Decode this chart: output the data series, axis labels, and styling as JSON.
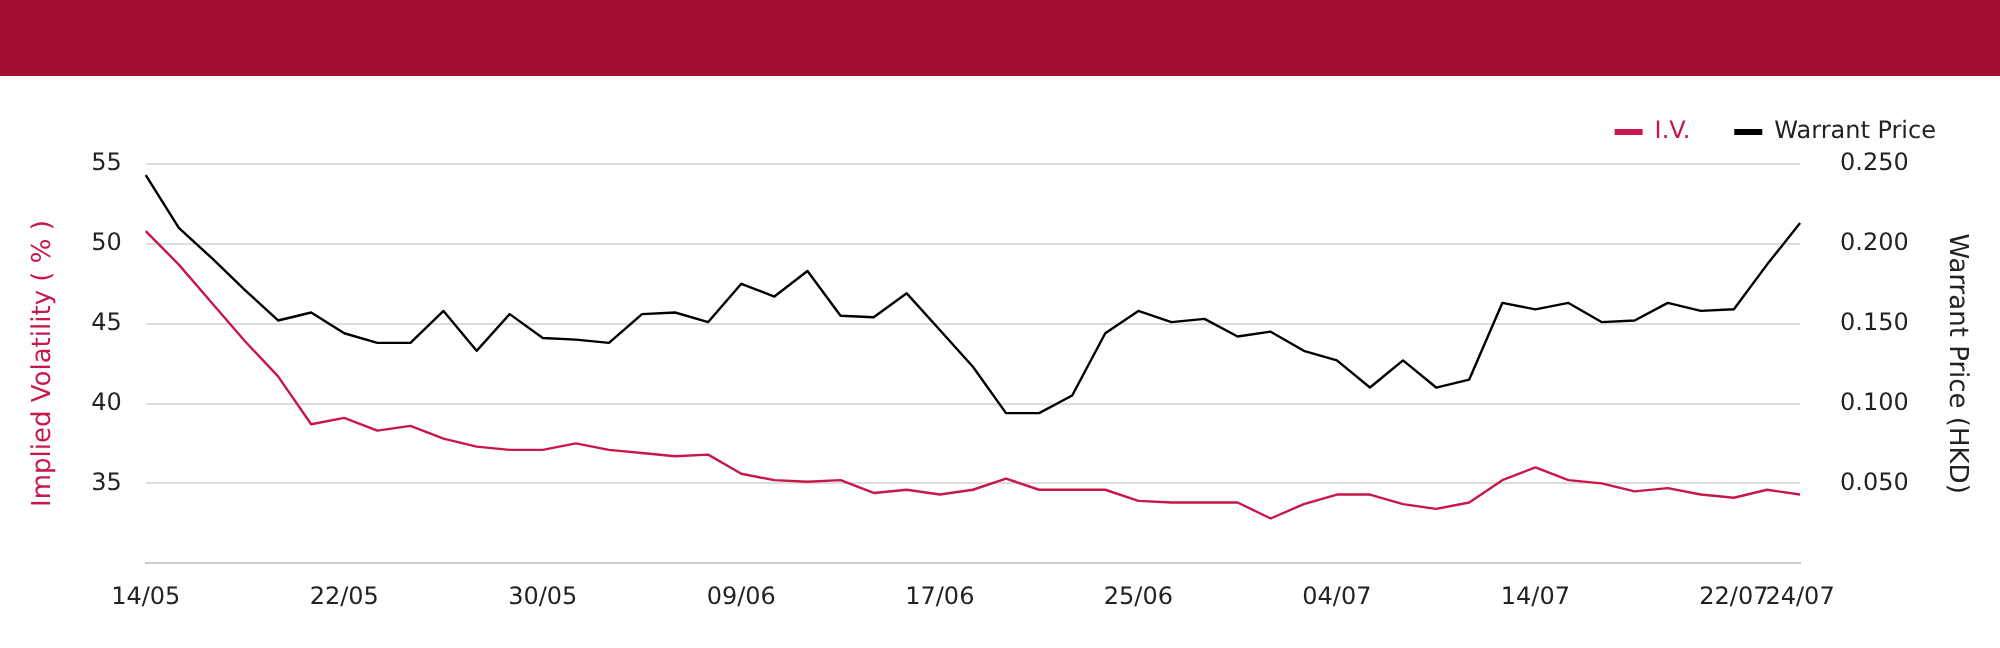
{
  "chart_data": {
    "type": "line",
    "categories": [
      "14/05",
      null,
      null,
      null,
      null,
      null,
      "22/05",
      null,
      null,
      null,
      null,
      null,
      "30/05",
      null,
      null,
      null,
      null,
      null,
      "09/06",
      null,
      null,
      null,
      null,
      null,
      "17/06",
      null,
      null,
      null,
      null,
      null,
      "25/06",
      null,
      null,
      null,
      null,
      null,
      "04/07",
      null,
      null,
      null,
      null,
      null,
      "14/07",
      null,
      null,
      null,
      null,
      null,
      "22/07",
      null,
      "24/07"
    ],
    "series": [
      {
        "name": "I.V.",
        "color": "#c8174a",
        "values": [
          50.8,
          48.7,
          46.3,
          43.9,
          41.7,
          38.7,
          39.1,
          38.3,
          38.6,
          37.8,
          37.3,
          37.1,
          37.1,
          37.5,
          37.1,
          36.9,
          36.7,
          36.8,
          35.6,
          35.2,
          35.1,
          35.2,
          34.4,
          34.6,
          34.3,
          34.6,
          35.3,
          34.6,
          34.6,
          34.6,
          33.9,
          33.8,
          33.8,
          33.8,
          32.8,
          33.7,
          34.3,
          34.3,
          33.7,
          33.4,
          33.8,
          35.2,
          36.0,
          35.2,
          35.0,
          34.5,
          34.7,
          34.3,
          34.1,
          34.6,
          34.3
        ]
      },
      {
        "name": "Warrant Price",
        "color": "#000000",
        "axis": "y2",
        "values": [
          0.243,
          0.21,
          0.191,
          0.171,
          0.152,
          0.157,
          0.144,
          0.138,
          0.138,
          0.158,
          0.133,
          0.156,
          0.141,
          0.14,
          0.138,
          0.156,
          0.157,
          0.151,
          0.175,
          0.167,
          0.183,
          0.155,
          0.154,
          0.169,
          0.146,
          0.123,
          0.094,
          0.094,
          0.105,
          0.144,
          0.158,
          0.151,
          0.153,
          0.142,
          0.145,
          0.133,
          0.127,
          0.11,
          0.127,
          0.11,
          0.115,
          0.163,
          0.159,
          0.163,
          0.151,
          0.152,
          0.163,
          0.158,
          0.159,
          0.187,
          0.213
        ]
      }
    ],
    "ylabel": "Implied Volatility ( % )",
    "y2label": "Warrant Price (HKD)",
    "ylim": [
      30,
      55
    ],
    "yticks": [
      35,
      40,
      45,
      50,
      55
    ],
    "y2lim": [
      0,
      0.25
    ],
    "y2ticks": [
      {
        "value": 0.05,
        "label": "0.050"
      },
      {
        "value": 0.1,
        "label": "0.100"
      },
      {
        "value": 0.15,
        "label": "0.150"
      },
      {
        "value": 0.2,
        "label": "0.200"
      },
      {
        "value": 0.25,
        "label": "0.250"
      }
    ],
    "grid": "y",
    "legend": "top right",
    "marker": "none",
    "line_style": "solid"
  }
}
